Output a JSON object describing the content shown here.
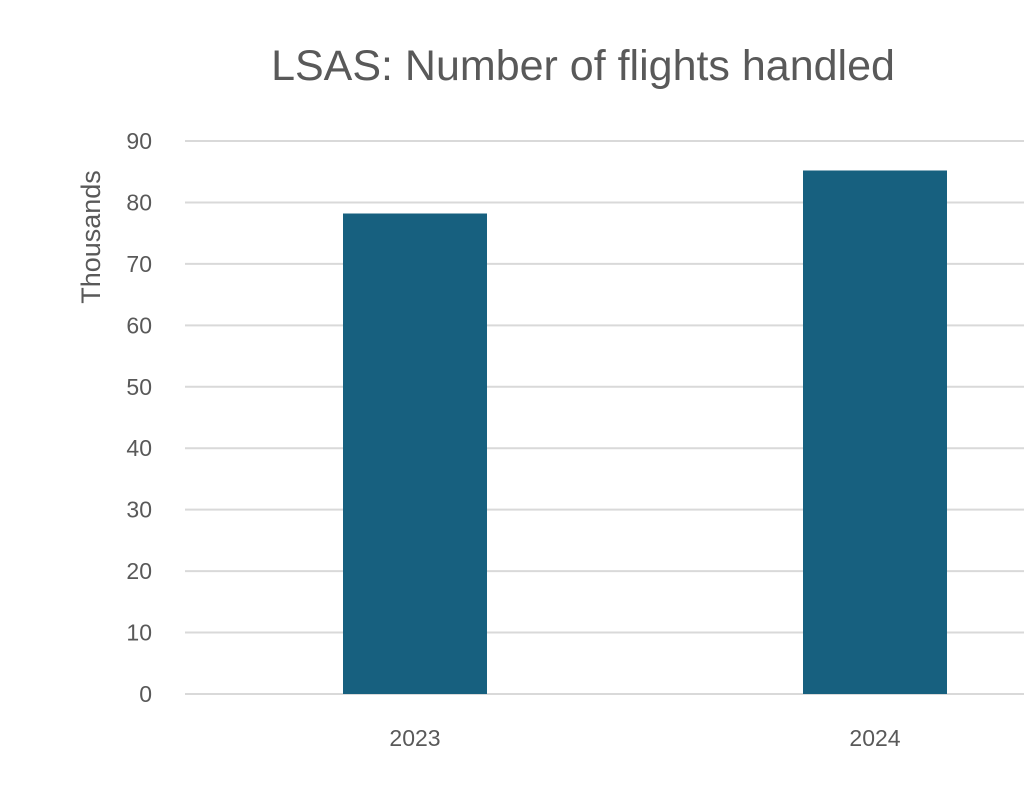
{
  "chart_data": {
    "type": "bar",
    "title": "LSAS: Number of flights handled",
    "xlabel": "",
    "ylabel": "Thousands",
    "categories": [
      "2023",
      "2024"
    ],
    "values": [
      78.2,
      85.2
    ],
    "ylim": [
      0,
      90
    ],
    "yticks": [
      "0",
      "10",
      "20",
      "30",
      "40",
      "50",
      "60",
      "70",
      "80",
      "90"
    ],
    "grid": true,
    "legend": "none",
    "colors": {
      "bar": "#17607F",
      "grid": "#D9D9D9",
      "text": "#595959"
    }
  }
}
